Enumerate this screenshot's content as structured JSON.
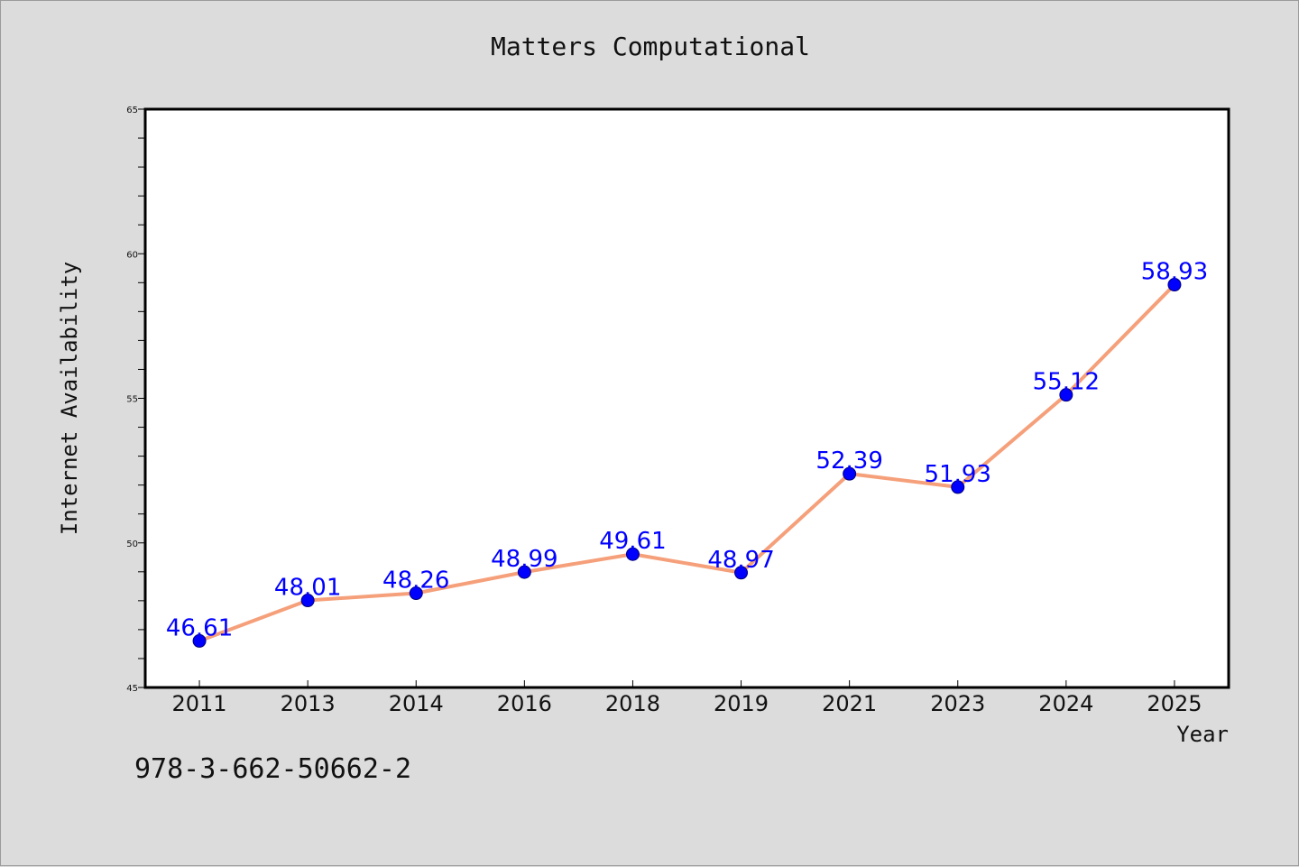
{
  "title": "Matters Computational",
  "footer_text": "978-3-662-50662-2",
  "colors": {
    "background": "#dcdcdc",
    "plot_background": "#ffffff",
    "line": "#f5a07a",
    "marker": "#0000ff",
    "label": "#0000ff"
  },
  "chart_data": {
    "type": "line",
    "title": "Matters Computational",
    "xlabel": "Year",
    "ylabel": "Internet Availability",
    "categories": [
      "2011",
      "2013",
      "2014",
      "2016",
      "2018",
      "2019",
      "2021",
      "2023",
      "2024",
      "2025"
    ],
    "series": [
      {
        "values": [
          46.61,
          48.01,
          48.26,
          48.99,
          49.61,
          48.97,
          52.39,
          51.93,
          55.12,
          58.93
        ],
        "data_labels": [
          "46.61",
          "48.01",
          "48.26",
          "48.99",
          "49.61",
          "48.97",
          "52.39",
          "51.93",
          "55.12",
          "58.93"
        ]
      }
    ],
    "ylim": [
      45,
      65
    ],
    "yticks": [
      "45",
      "50",
      "55",
      "60",
      "65"
    ],
    "grid": false,
    "legend": "none"
  }
}
